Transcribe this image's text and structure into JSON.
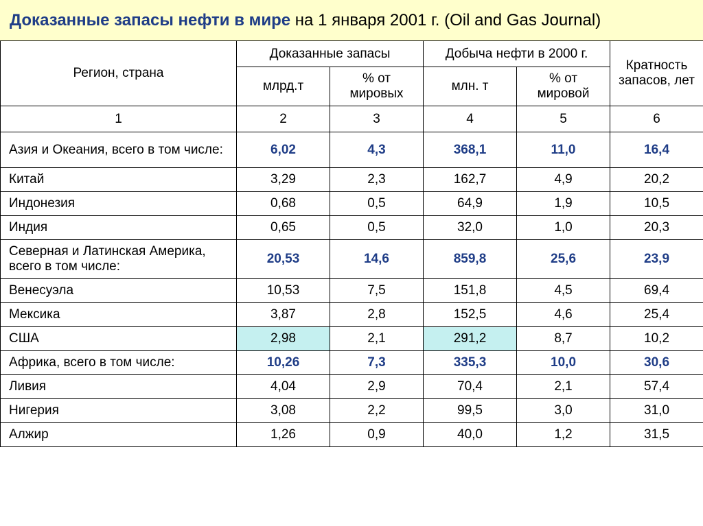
{
  "title": {
    "main": "Доказанные запасы нефти в мире",
    "rest": " на 1 января 2001 г. (Oil and Gas Journal)"
  },
  "header": {
    "region": "Регион, страна",
    "reserves": "Доказанные запасы",
    "production": "Добыча нефти в 2000 г.",
    "ratio": "Кратность запасов, лет",
    "sub": {
      "bln_t": "млрд.т",
      "pct_world_reserves": "% от мировых",
      "mln_t": "млн. т",
      "pct_world_prod": "% от мировой"
    },
    "nums": {
      "c1": "1",
      "c2": "2",
      "c3": "3",
      "c4": "4",
      "c5": "5",
      "c6": "6"
    }
  },
  "rows": [
    {
      "region": "Азия и Океания, всего в том числе:",
      "c2": "6,02",
      "c3": "4,3",
      "c4": "368,1",
      "c5": "11,0",
      "c6": "16,4",
      "tall": true,
      "bold": true,
      "hl2": false,
      "hl4": false
    },
    {
      "region": "Китай",
      "c2": "3,29",
      "c3": "2,3",
      "c4": "162,7",
      "c5": "4,9",
      "c6": "20,2",
      "tall": false,
      "bold": false,
      "hl2": false,
      "hl4": false
    },
    {
      "region": "Индонезия",
      "c2": "0,68",
      "c3": "0,5",
      "c4": "64,9",
      "c5": "1,9",
      "c6": "10,5",
      "tall": false,
      "bold": false,
      "hl2": false,
      "hl4": false
    },
    {
      "region": "Индия",
      "c2": "0,65",
      "c3": "0,5",
      "c4": "32,0",
      "c5": "1,0",
      "c6": "20,3",
      "tall": false,
      "bold": false,
      "hl2": false,
      "hl4": false
    },
    {
      "region": "Северная и Латинская Америка, всего в том числе:",
      "c2": "20,53",
      "c3": "14,6",
      "c4": "859,8",
      "c5": "25,6",
      "c6": "23,9",
      "tall": true,
      "bold": true,
      "hl2": false,
      "hl4": false
    },
    {
      "region": "Венесуэла",
      "c2": "10,53",
      "c3": "7,5",
      "c4": "151,8",
      "c5": "4,5",
      "c6": "69,4",
      "tall": false,
      "bold": false,
      "hl2": false,
      "hl4": false
    },
    {
      "region": "Мексика",
      "c2": "3,87",
      "c3": "2,8",
      "c4": "152,5",
      "c5": "4,6",
      "c6": "25,4",
      "tall": false,
      "bold": false,
      "hl2": false,
      "hl4": false
    },
    {
      "region": "США",
      "c2": "2,98",
      "c3": "2,1",
      "c4": "291,2",
      "c5": "8,7",
      "c6": "10,2",
      "tall": false,
      "bold": false,
      "hl2": true,
      "hl4": true
    },
    {
      "region": "Африка, всего в том числе:",
      "c2": "10,26",
      "c3": "7,3",
      "c4": "335,3",
      "c5": "10,0",
      "c6": "30,6",
      "tall": false,
      "bold": true,
      "hl2": false,
      "hl4": false
    },
    {
      "region": "Ливия",
      "c2": "4,04",
      "c3": "2,9",
      "c4": "70,4",
      "c5": "2,1",
      "c6": "57,4",
      "tall": false,
      "bold": false,
      "hl2": false,
      "hl4": false
    },
    {
      "region": "Нигерия",
      "c2": "3,08",
      "c3": "2,2",
      "c4": "99,5",
      "c5": "3,0",
      "c6": "31,0",
      "tall": false,
      "bold": false,
      "hl2": false,
      "hl4": false
    },
    {
      "region": "Алжир",
      "c2": "1,26",
      "c3": "0,9",
      "c4": "40,0",
      "c5": "1,2",
      "c6": "31,5",
      "tall": false,
      "bold": false,
      "hl2": false,
      "hl4": false
    }
  ],
  "style": {
    "title_bg": "#ffffcc",
    "title_main_color": "#1f3d87",
    "bold_color": "#1f3d87",
    "highlight_bg": "#c5f0f0",
    "border_color": "#000000",
    "font_size_title": 24,
    "font_size_body": 19
  }
}
